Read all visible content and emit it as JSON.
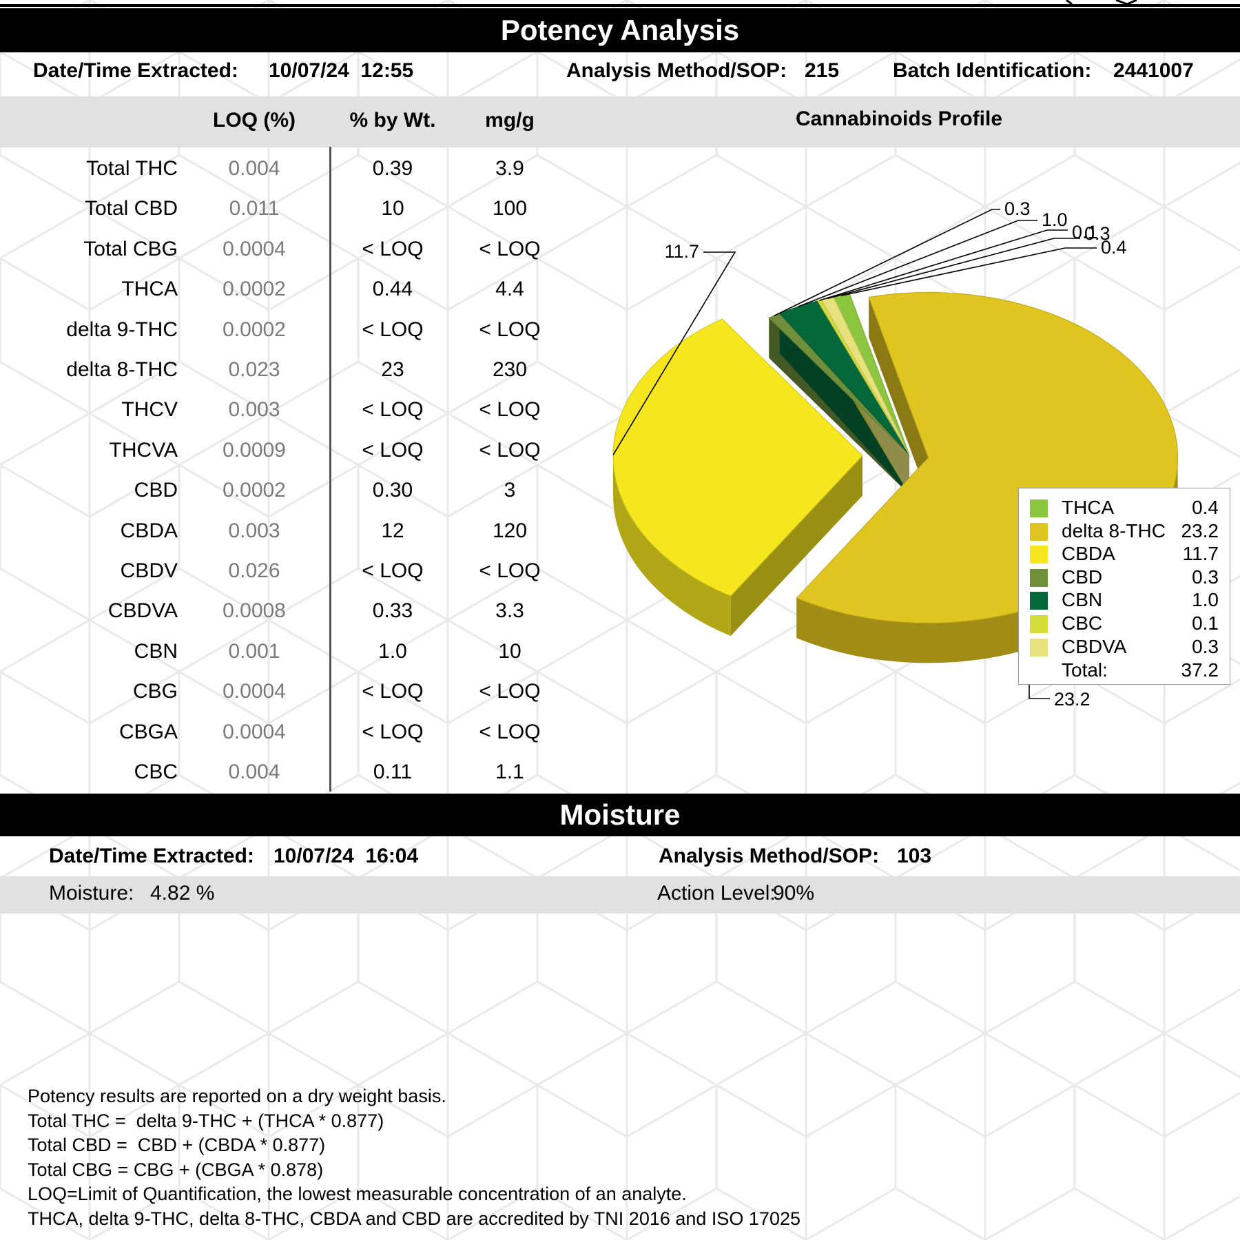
{
  "potency": {
    "title": "Potency Analysis",
    "extracted_label": "Date/Time Extracted:",
    "extracted_value": "10/07/24  12:55",
    "method_label": "Analysis Method/SOP:",
    "method_value": "215",
    "batch_label": "Batch Identification:",
    "batch_value": "2441007",
    "columns": {
      "loq": "LOQ (%)",
      "pct": "% by Wt.",
      "mg": "mg/g"
    },
    "rows": [
      {
        "name": "Total THC",
        "loq": "0.004",
        "pct": "0.39",
        "mg": "3.9"
      },
      {
        "name": "Total CBD",
        "loq": "0.011",
        "pct": "10",
        "mg": "100"
      },
      {
        "name": "Total CBG",
        "loq": "0.0004",
        "pct": "< LOQ",
        "mg": "< LOQ"
      },
      {
        "name": "THCA",
        "loq": "0.0002",
        "pct": "0.44",
        "mg": "4.4"
      },
      {
        "name": "delta 9-THC",
        "loq": "0.0002",
        "pct": "< LOQ",
        "mg": "< LOQ"
      },
      {
        "name": "delta 8-THC",
        "loq": "0.023",
        "pct": "23",
        "mg": "230"
      },
      {
        "name": "THCV",
        "loq": "0.003",
        "pct": "< LOQ",
        "mg": "< LOQ"
      },
      {
        "name": "THCVA",
        "loq": "0.0009",
        "pct": "< LOQ",
        "mg": "< LOQ"
      },
      {
        "name": "CBD",
        "loq": "0.0002",
        "pct": "0.30",
        "mg": "3"
      },
      {
        "name": "CBDA",
        "loq": "0.003",
        "pct": "12",
        "mg": "120"
      },
      {
        "name": "CBDV",
        "loq": "0.026",
        "pct": "< LOQ",
        "mg": "< LOQ"
      },
      {
        "name": "CBDVA",
        "loq": "0.0008",
        "pct": "0.33",
        "mg": "3.3"
      },
      {
        "name": "CBN",
        "loq": "0.001",
        "pct": "1.0",
        "mg": "10"
      },
      {
        "name": "CBG",
        "loq": "0.0004",
        "pct": "< LOQ",
        "mg": "< LOQ"
      },
      {
        "name": "CBGA",
        "loq": "0.0004",
        "pct": "< LOQ",
        "mg": "< LOQ"
      },
      {
        "name": "CBC",
        "loq": "0.004",
        "pct": "0.11",
        "mg": "1.1"
      }
    ]
  },
  "chart_data": {
    "type": "pie",
    "title": "Cannabinoids Profile",
    "slices": [
      {
        "name": "THCA",
        "value": 0.4,
        "label": "0.4",
        "color": "#8cc63f"
      },
      {
        "name": "delta 8-THC",
        "value": 23.2,
        "label": "23.2",
        "color": "#e0c41f"
      },
      {
        "name": "CBDA",
        "value": 11.7,
        "label": "11.7",
        "color": "#f5e61e"
      },
      {
        "name": "CBD",
        "value": 0.3,
        "label": "0.3",
        "color": "#6f8f3a"
      },
      {
        "name": "CBN",
        "value": 1.0,
        "label": "1.0",
        "color": "#05683a"
      },
      {
        "name": "CBC",
        "value": 0.1,
        "label": "0.1",
        "color": "#d4dc3a"
      },
      {
        "name": "CBDVA",
        "value": 0.3,
        "label": "0.3",
        "color": "#e6e17a"
      }
    ],
    "legend_position": "right",
    "total_label": "Total:",
    "total_value": "37.2"
  },
  "moisture": {
    "title": "Moisture",
    "extracted_label": "Date/Time Extracted:",
    "extracted_value": "10/07/24  16:04",
    "method_label": "Analysis Method/SOP:",
    "method_value": "103",
    "moisture_label": "Moisture:",
    "moisture_value": "4.82 %",
    "action_label": "Action Level:",
    "action_value": "90%"
  },
  "notes": [
    "Potency results are reported on a dry weight basis.",
    "Total THC =  delta 9-THC + (THCA * 0.877)",
    "Total CBD =  CBD + (CBDA * 0.877)",
    "Total CBG = CBG + (CBGA * 0.878)",
    "LOQ=Limit of Quantification, the lowest measurable concentration of an analyte.",
    "THCA, delta 9-THC, delta 8-THC, CBDA and CBD are accredited by TNI 2016 and ISO 17025"
  ]
}
